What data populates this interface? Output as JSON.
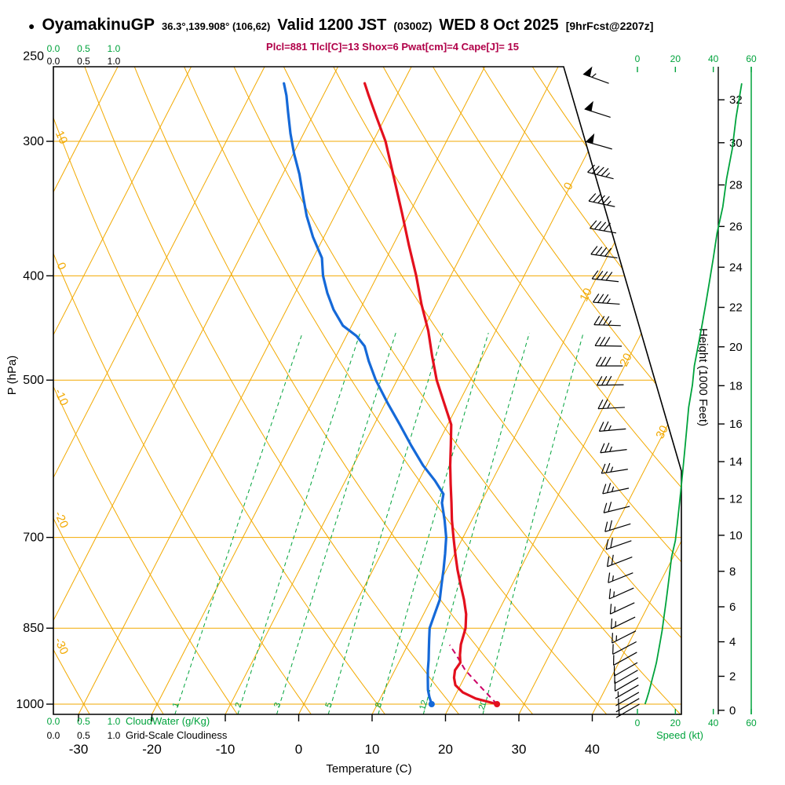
{
  "header": {
    "bullet": "●",
    "station": "OyamakinuGP",
    "coords": "36.3°,139.908° (106,62)",
    "valid": "Valid 1200 JST",
    "valid_z": "(0300Z)",
    "date": "WED 8 Oct 2025",
    "fcst": "[9hrFcst@2207z]",
    "stats": "Plcl=881 Tlcl[C]=13 Shox=6 Pwat[cm]=4 Cape[J]= 15"
  },
  "axes": {
    "pressure": {
      "title": "P (hPa)",
      "ticks": [
        250,
        300,
        400,
        500,
        700,
        850,
        1000
      ]
    },
    "temperature": {
      "title": "Temperature (C)",
      "ticks": [
        -30,
        -20,
        -10,
        0,
        10,
        20,
        30,
        40
      ]
    },
    "height": {
      "title": "Height (1000 Feet)",
      "ticks": [
        0,
        2,
        4,
        6,
        8,
        10,
        12,
        14,
        16,
        18,
        20,
        22,
        24,
        26,
        28,
        30,
        32
      ]
    },
    "speed": {
      "title": "Speed (kt)",
      "ticks": [
        0,
        20,
        40,
        60
      ]
    },
    "cloudwater": {
      "title": "CloudWater (g/Kg)",
      "ticks": [
        "0.0",
        "0.5",
        "1.0"
      ]
    },
    "cloudiness": {
      "title": "Grid-Scale Cloudiness",
      "ticks": [
        "0.0",
        "0.5",
        "1.0"
      ]
    },
    "isotherm_labels": [
      0,
      10,
      20,
      30
    ],
    "dry_adiabat_labels": [
      10,
      0,
      -10,
      -20,
      -30
    ],
    "mixing_ratio_labels": [
      1,
      2,
      3,
      5,
      8,
      12,
      20
    ]
  },
  "chart_data": {
    "type": "skew-t-log-p",
    "pressure_range_hpa": [
      250,
      1000
    ],
    "temperature_unit": "C",
    "temperature_profile": [
      [
        1000,
        26.3
      ],
      [
        988,
        23.0
      ],
      [
        975,
        20.8
      ],
      [
        960,
        19.3
      ],
      [
        945,
        18.6
      ],
      [
        930,
        18.2
      ],
      [
        915,
        18.4
      ],
      [
        900,
        17.8
      ],
      [
        880,
        17.2
      ],
      [
        850,
        16.7
      ],
      [
        825,
        15.8
      ],
      [
        800,
        14.5
      ],
      [
        775,
        13.0
      ],
      [
        750,
        11.5
      ],
      [
        725,
        10.1
      ],
      [
        700,
        8.7
      ],
      [
        675,
        7.3
      ],
      [
        650,
        6.0
      ],
      [
        625,
        4.6
      ],
      [
        600,
        3.2
      ],
      [
        575,
        1.9
      ],
      [
        550,
        0.5
      ],
      [
        525,
        -2.0
      ],
      [
        500,
        -4.6
      ],
      [
        475,
        -6.9
      ],
      [
        450,
        -9.2
      ],
      [
        425,
        -12.0
      ],
      [
        400,
        -14.7
      ],
      [
        375,
        -17.8
      ],
      [
        350,
        -21.0
      ],
      [
        325,
        -24.5
      ],
      [
        300,
        -28.3
      ],
      [
        285,
        -31.2
      ],
      [
        272,
        -33.8
      ],
      [
        265,
        -35.2
      ]
    ],
    "dewpoint_profile": [
      [
        1000,
        17.4
      ],
      [
        985,
        16.6
      ],
      [
        970,
        15.9
      ],
      [
        950,
        15.2
      ],
      [
        930,
        14.5
      ],
      [
        910,
        13.9
      ],
      [
        890,
        13.2
      ],
      [
        870,
        12.5
      ],
      [
        850,
        11.8
      ],
      [
        825,
        11.5
      ],
      [
        800,
        11.2
      ],
      [
        775,
        10.4
      ],
      [
        750,
        9.6
      ],
      [
        725,
        8.7
      ],
      [
        700,
        7.7
      ],
      [
        675,
        6.3
      ],
      [
        650,
        4.7
      ],
      [
        638,
        4.3
      ],
      [
        620,
        2.2
      ],
      [
        600,
        -0.5
      ],
      [
        575,
        -3.5
      ],
      [
        550,
        -6.5
      ],
      [
        525,
        -9.7
      ],
      [
        500,
        -12.9
      ],
      [
        480,
        -15.2
      ],
      [
        465,
        -16.8
      ],
      [
        455,
        -18.6
      ],
      [
        445,
        -21.2
      ],
      [
        430,
        -23.6
      ],
      [
        415,
        -25.6
      ],
      [
        400,
        -27.4
      ],
      [
        385,
        -28.8
      ],
      [
        368,
        -31.5
      ],
      [
        352,
        -33.8
      ],
      [
        338,
        -35.6
      ],
      [
        322,
        -37.7
      ],
      [
        308,
        -39.9
      ],
      [
        295,
        -41.8
      ],
      [
        282,
        -43.6
      ],
      [
        272,
        -45.0
      ],
      [
        265,
        -46.2
      ]
    ],
    "parcel_path": [
      [
        1000,
        26.3
      ],
      [
        965,
        23.0
      ],
      [
        930,
        19.6
      ],
      [
        900,
        17.3
      ],
      [
        881,
        15.7
      ]
    ],
    "wind_profile_p_dir_kt": [
      [
        265,
        290,
        55
      ],
      [
        285,
        288,
        52
      ],
      [
        305,
        286,
        50
      ],
      [
        325,
        284,
        47
      ],
      [
        345,
        282,
        45
      ],
      [
        365,
        280,
        42
      ],
      [
        385,
        278,
        40
      ],
      [
        405,
        276,
        38
      ],
      [
        425,
        274,
        36
      ],
      [
        445,
        272,
        34
      ],
      [
        465,
        271,
        32
      ],
      [
        485,
        270,
        30
      ],
      [
        505,
        269,
        29
      ],
      [
        530,
        267,
        27
      ],
      [
        555,
        265,
        26
      ],
      [
        580,
        263,
        25
      ],
      [
        605,
        261,
        24
      ],
      [
        630,
        258,
        23
      ],
      [
        655,
        256,
        22
      ],
      [
        680,
        253,
        21
      ],
      [
        705,
        251,
        20
      ],
      [
        730,
        249,
        18
      ],
      [
        755,
        248,
        17
      ],
      [
        780,
        246,
        16
      ],
      [
        805,
        245,
        15
      ],
      [
        830,
        244,
        14
      ],
      [
        855,
        243,
        13
      ],
      [
        875,
        242,
        12
      ],
      [
        895,
        241,
        11
      ],
      [
        915,
        240,
        10
      ],
      [
        930,
        240,
        9
      ],
      [
        945,
        240,
        8
      ],
      [
        960,
        240,
        7
      ],
      [
        975,
        240,
        6
      ],
      [
        988,
        240,
        5
      ],
      [
        1000,
        240,
        4
      ]
    ],
    "colors": {
      "temperature": "#e3101e",
      "dewpoint": "#1569d8",
      "parcel": "#cc0066",
      "grid_orange": "#f2a900",
      "grid_green": "#00a33c",
      "barbs": "#000000"
    }
  }
}
